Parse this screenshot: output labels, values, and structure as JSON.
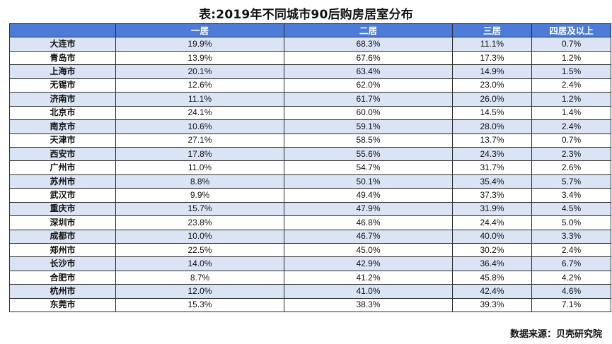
{
  "title": "表:2019年不同城市90后购房居室分布",
  "table": {
    "headers": [
      "",
      "一居",
      "二居",
      "三居",
      "四居及以上"
    ],
    "rows": [
      {
        "city": "大连市",
        "v": [
          "19.9%",
          "68.3%",
          "11.1%",
          "0.7%"
        ]
      },
      {
        "city": "青岛市",
        "v": [
          "13.9%",
          "67.6%",
          "17.3%",
          "1.2%"
        ]
      },
      {
        "city": "上海市",
        "v": [
          "20.1%",
          "63.4%",
          "14.9%",
          "1.5%"
        ]
      },
      {
        "city": "无锡市",
        "v": [
          "12.6%",
          "62.0%",
          "23.0%",
          "2.4%"
        ]
      },
      {
        "city": "济南市",
        "v": [
          "11.1%",
          "61.7%",
          "26.0%",
          "1.2%"
        ]
      },
      {
        "city": "北京市",
        "v": [
          "24.1%",
          "60.0%",
          "14.5%",
          "1.4%"
        ]
      },
      {
        "city": "南京市",
        "v": [
          "10.6%",
          "59.1%",
          "28.0%",
          "2.4%"
        ]
      },
      {
        "city": "天津市",
        "v": [
          "27.1%",
          "58.5%",
          "13.7%",
          "0.7%"
        ]
      },
      {
        "city": "西安市",
        "v": [
          "17.8%",
          "55.6%",
          "24.3%",
          "2.3%"
        ]
      },
      {
        "city": "广州市",
        "v": [
          "11.0%",
          "54.7%",
          "31.7%",
          "2.6%"
        ]
      },
      {
        "city": "苏州市",
        "v": [
          "8.8%",
          "50.1%",
          "35.4%",
          "5.7%"
        ]
      },
      {
        "city": "武汉市",
        "v": [
          "9.9%",
          "49.4%",
          "37.3%",
          "3.4%"
        ]
      },
      {
        "city": "重庆市",
        "v": [
          "15.7%",
          "47.9%",
          "31.9%",
          "4.5%"
        ]
      },
      {
        "city": "深圳市",
        "v": [
          "23.8%",
          "46.8%",
          "24.4%",
          "5.0%"
        ]
      },
      {
        "city": "成都市",
        "v": [
          "10.0%",
          "46.7%",
          "40.0%",
          "3.3%"
        ]
      },
      {
        "city": "郑州市",
        "v": [
          "22.5%",
          "45.0%",
          "30.2%",
          "2.4%"
        ]
      },
      {
        "city": "长沙市",
        "v": [
          "14.0%",
          "42.9%",
          "36.4%",
          "6.7%"
        ]
      },
      {
        "city": "合肥市",
        "v": [
          "8.7%",
          "41.2%",
          "45.8%",
          "4.2%"
        ]
      },
      {
        "city": "杭州市",
        "v": [
          "12.0%",
          "41.0%",
          "42.4%",
          "4.6%"
        ]
      },
      {
        "city": "东莞市",
        "v": [
          "15.3%",
          "38.3%",
          "39.3%",
          "7.1%"
        ]
      }
    ]
  },
  "source": "数据来源：贝壳研究院",
  "colors": {
    "header_bg": "#4d7cd8",
    "odd_row_bg": "#dae4f5",
    "even_row_bg": "#ffffff"
  }
}
